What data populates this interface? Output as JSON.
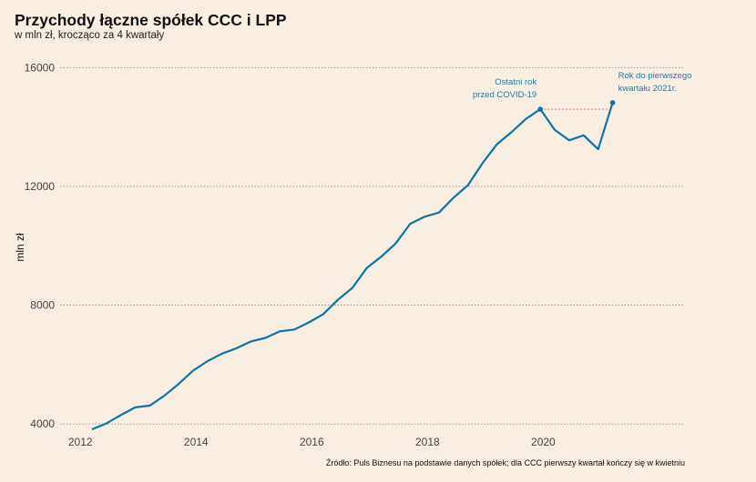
{
  "chart_data": {
    "type": "line",
    "title": "Przychody łączne spółek CCC i LPP",
    "subtitle": "w mln zł, krocząco za 4 kwartały",
    "ylabel": "mln zł",
    "xlabel": "",
    "source": "Źródło: Puls Biznesu na podstawie danych spółek; dla CCC pierwszy kwartał kończy się w kwietniu",
    "ylim": [
      3700,
      16500
    ],
    "xlim": [
      2011.65,
      2022.45
    ],
    "yticks": [
      4000,
      8000,
      12000,
      16000
    ],
    "ytick_labels": [
      "4000",
      "8000",
      "12000",
      "16000"
    ],
    "xticks": [
      2012,
      2014,
      2016,
      2018,
      2020
    ],
    "xtick_labels": [
      "2012",
      "2014",
      "2016",
      "2018",
      "2020"
    ],
    "grid": "horizontal dotted",
    "line_color": "#0f74a4",
    "annotation_color": "#1a7fa8",
    "x": [
      2012.2,
      2012.45,
      2012.7,
      2012.95,
      2013.2,
      2013.45,
      2013.7,
      2013.95,
      2014.2,
      2014.45,
      2014.7,
      2014.95,
      2015.2,
      2015.45,
      2015.7,
      2015.95,
      2016.2,
      2016.45,
      2016.7,
      2016.95,
      2017.2,
      2017.45,
      2017.7,
      2017.95,
      2018.2,
      2018.45,
      2018.7,
      2018.95,
      2019.2,
      2019.45,
      2019.7,
      2019.95,
      2020.2,
      2020.45,
      2020.7,
      2020.95,
      2021.2
    ],
    "values": [
      3820,
      4020,
      4300,
      4560,
      4620,
      4950,
      5350,
      5800,
      6120,
      6370,
      6550,
      6780,
      6900,
      7120,
      7180,
      7420,
      7700,
      8180,
      8580,
      9250,
      9630,
      10080,
      10740,
      10980,
      11120,
      11620,
      12040,
      12780,
      13420,
      13820,
      14270,
      14600,
      13900,
      13550,
      13720,
      13250,
      14820
    ],
    "annotations": [
      {
        "lines": [
          "Ostatni rok",
          "przed COVID-19"
        ],
        "x": 2019.95,
        "y": 14600
      },
      {
        "lines": [
          "Rok do pierwszego",
          "kwartału 2021r."
        ],
        "x": 2021.2,
        "y": 14820
      }
    ]
  }
}
